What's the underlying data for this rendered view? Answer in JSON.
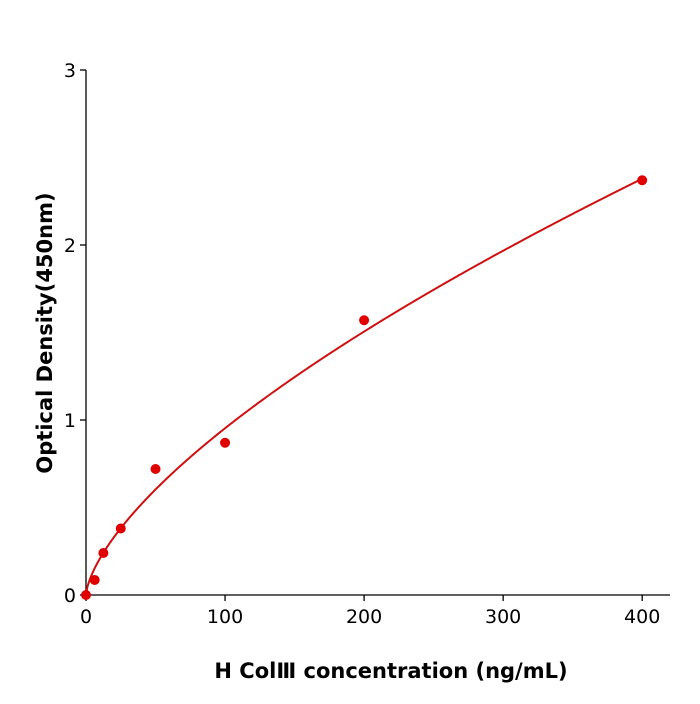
{
  "chart_data": {
    "type": "scatter",
    "title": "",
    "xlabel": "H  ColⅢ concentration (ng/mL)",
    "ylabel": "Optical Density(450nm)",
    "xlim": [
      0,
      420
    ],
    "ylim": [
      0,
      3
    ],
    "xticks": [
      0,
      100,
      200,
      300,
      400
    ],
    "yticks": [
      0,
      1,
      2,
      3
    ],
    "grid": false,
    "series": [
      {
        "x": [
          0,
          6.25,
          12.5,
          25,
          50,
          100,
          200,
          400
        ],
        "y": [
          0.0,
          0.086,
          0.24,
          0.38,
          0.72,
          0.87,
          1.57,
          2.37
        ],
        "color": "#e00000"
      }
    ],
    "fit": {
      "type": "power",
      "a": 0.0456,
      "b": 0.66,
      "color": "#d01010"
    }
  }
}
